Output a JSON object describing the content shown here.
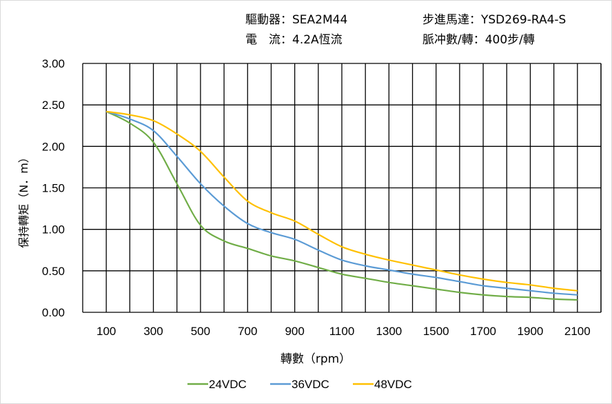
{
  "header": {
    "driver_label": "驅動器：",
    "driver_value": "SEA2M44",
    "motor_label": "步進馬達：",
    "motor_value": "YSD269-RA4-S",
    "current_label": "電　流：",
    "current_value": "4.2A恆流",
    "pulse_label": "脈冲數/轉：",
    "pulse_value": "400步/轉"
  },
  "chart_data": {
    "type": "line",
    "title": "",
    "xlabel": "轉數（rpm）",
    "ylabel": "保持轉矩（N．m）",
    "xlim": [
      0,
      2200
    ],
    "ylim": [
      0,
      3
    ],
    "grid": true,
    "legend_position": "bottom",
    "x_ticks": [
      "100",
      "300",
      "500",
      "700",
      "900",
      "1100",
      "1300",
      "1500",
      "1700",
      "1900",
      "2100"
    ],
    "y_ticks": [
      "0.00",
      "0.50",
      "1.00",
      "1.50",
      "2.00",
      "2.50",
      "3.00"
    ],
    "x": [
      100,
      200,
      300,
      400,
      500,
      600,
      700,
      800,
      900,
      1000,
      1100,
      1200,
      1300,
      1400,
      1500,
      1600,
      1700,
      1800,
      1900,
      2000,
      2100
    ],
    "series": [
      {
        "name": "24VDC",
        "color": "#70ad47",
        "values": [
          2.42,
          2.28,
          2.05,
          1.55,
          1.05,
          0.86,
          0.77,
          0.68,
          0.62,
          0.54,
          0.46,
          0.41,
          0.36,
          0.32,
          0.28,
          0.24,
          0.21,
          0.19,
          0.18,
          0.16,
          0.15
        ]
      },
      {
        "name": "36VDC",
        "color": "#5b9bd5",
        "values": [
          2.42,
          2.33,
          2.19,
          1.88,
          1.55,
          1.28,
          1.07,
          0.96,
          0.88,
          0.75,
          0.63,
          0.56,
          0.51,
          0.46,
          0.42,
          0.37,
          0.32,
          0.29,
          0.26,
          0.23,
          0.21
        ]
      },
      {
        "name": "48VDC",
        "color": "#ffc000",
        "values": [
          2.42,
          2.38,
          2.31,
          2.15,
          1.94,
          1.63,
          1.34,
          1.2,
          1.1,
          0.94,
          0.79,
          0.7,
          0.63,
          0.57,
          0.51,
          0.45,
          0.4,
          0.36,
          0.33,
          0.29,
          0.26
        ]
      }
    ]
  }
}
